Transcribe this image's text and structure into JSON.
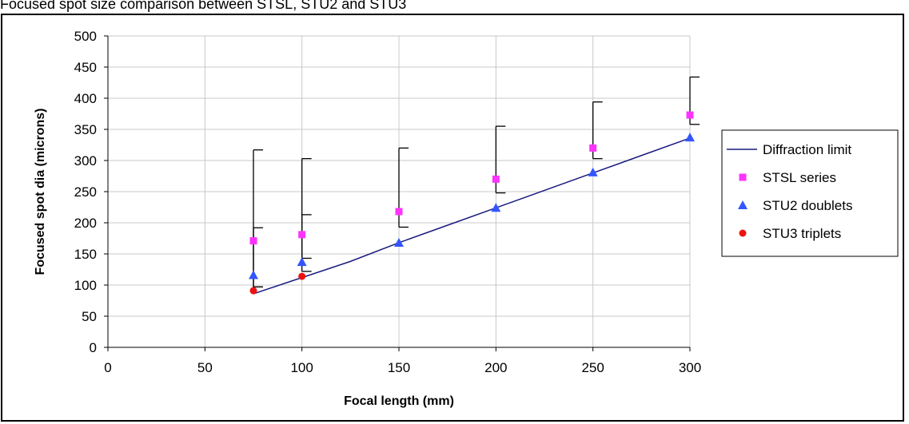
{
  "page": {
    "title": "Focused spot size comparison between STSL, STU2 and STU3"
  },
  "colors": {
    "diffraction": "#1a1a80",
    "stsl": "#ff33ff",
    "stu2": "#3355ff",
    "stu3": "#ee1111",
    "grid": "#c8c8c8",
    "errorbar": "#000000"
  },
  "chart_data": {
    "type": "scatter",
    "title": "Focused spot size comparison between STSL, STU2 and STU3",
    "xlabel": "Focal length (mm)",
    "ylabel": "Focused spot dia (microns)",
    "xlim": [
      0,
      300
    ],
    "ylim": [
      0,
      500
    ],
    "x_ticks": [
      0,
      50,
      100,
      150,
      200,
      250,
      300
    ],
    "y_ticks": [
      0,
      50,
      100,
      150,
      200,
      250,
      300,
      350,
      400,
      450,
      500
    ],
    "grid": true,
    "legend_position": "right",
    "series": [
      {
        "name": "Diffraction limit",
        "kind": "line",
        "points": [
          [
            75,
            86
          ],
          [
            100,
            112
          ],
          [
            125,
            138
          ],
          [
            150,
            168
          ],
          [
            175,
            196
          ],
          [
            200,
            224
          ],
          [
            225,
            252
          ],
          [
            250,
            280
          ],
          [
            275,
            308
          ],
          [
            300,
            336
          ]
        ]
      },
      {
        "name": "STSL series",
        "kind": "marker-square",
        "points": [
          {
            "x": 75,
            "y": 171,
            "err_low": 97,
            "err_high": 317
          },
          {
            "x": 100,
            "y": 181,
            "err_low": 143,
            "err_high": 303
          },
          {
            "x": 150,
            "y": 218,
            "err_low": 193,
            "err_high": 320
          },
          {
            "x": 200,
            "y": 270,
            "err_low": 248,
            "err_high": 355
          },
          {
            "x": 250,
            "y": 320,
            "err_low": 303,
            "err_high": 394
          },
          {
            "x": 300,
            "y": 373,
            "err_low": 358,
            "err_high": 434
          }
        ]
      },
      {
        "name": "STU2 doublets",
        "kind": "marker-triangle",
        "points": [
          {
            "x": 75,
            "y": 116,
            "err_low": 97,
            "err_high": 192
          },
          {
            "x": 100,
            "y": 137,
            "err_low": 122,
            "err_high": 213
          },
          {
            "x": 150,
            "y": 168
          },
          {
            "x": 200,
            "y": 224
          },
          {
            "x": 250,
            "y": 281
          },
          {
            "x": 300,
            "y": 337
          }
        ]
      },
      {
        "name": "STU3 triplets",
        "kind": "marker-circle",
        "points": [
          {
            "x": 75,
            "y": 91
          },
          {
            "x": 100,
            "y": 114
          }
        ]
      }
    ]
  }
}
